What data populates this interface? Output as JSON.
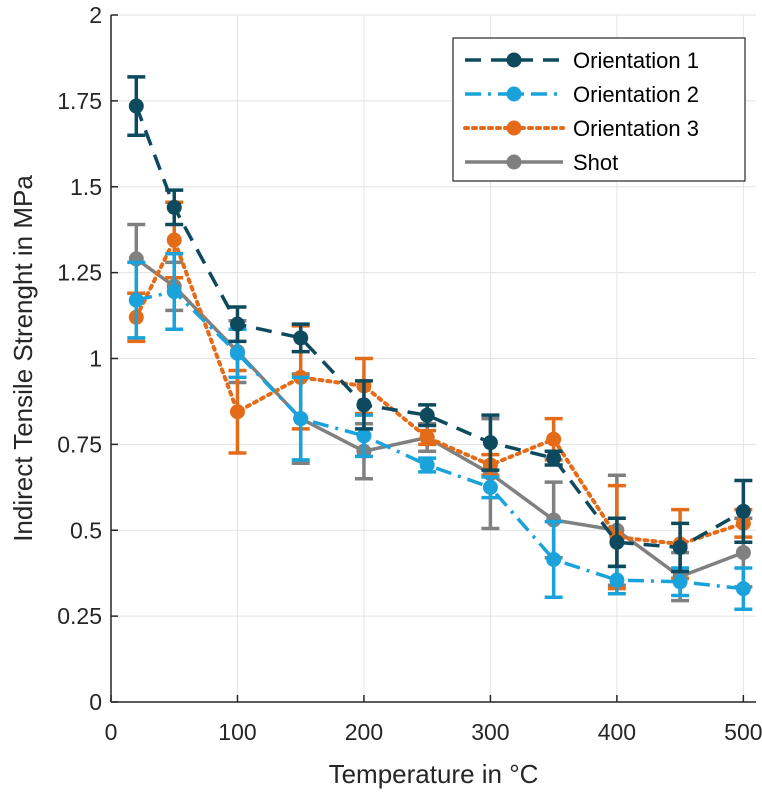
{
  "chart_data": {
    "type": "line",
    "title": "",
    "xlabel": "Temperature in °C",
    "ylabel": "Indirect Tensile Strenght in MPa",
    "xlim": [
      0,
      510
    ],
    "ylim": [
      0,
      2
    ],
    "x_ticks": [
      0,
      100,
      200,
      300,
      400,
      500
    ],
    "x_tick_labels": [
      "0",
      "100",
      "200",
      "300",
      "400",
      "500"
    ],
    "y_ticks": [
      0,
      0.25,
      0.5,
      0.75,
      1,
      1.25,
      1.5,
      1.75,
      2
    ],
    "y_tick_labels": [
      "0",
      "0.25",
      "0.5",
      "0.75",
      "1",
      "1.25",
      "1.5",
      "1.75",
      "2"
    ],
    "grid": true,
    "legend_position": "top-right",
    "x": [
      20,
      50,
      100,
      150,
      200,
      250,
      300,
      350,
      400,
      450,
      500
    ],
    "series": [
      {
        "name": "Orientation 1",
        "color": "#0d4a5e",
        "line_style": "dashed",
        "values": [
          1.735,
          1.44,
          1.1,
          1.06,
          0.865,
          0.835,
          0.755,
          0.71,
          0.465,
          0.45,
          0.555
        ],
        "errors": [
          0.085,
          0.05,
          0.05,
          0.04,
          0.07,
          0.03,
          0.08,
          0.02,
          0.07,
          0.07,
          0.09
        ]
      },
      {
        "name": "Orientation 2",
        "color": "#1aa3db",
        "line_style": "dashdot",
        "values": [
          1.17,
          1.195,
          1.015,
          0.825,
          0.775,
          0.69,
          0.625,
          0.415,
          0.355,
          0.35,
          0.33
        ],
        "errors": [
          0.11,
          0.11,
          0.07,
          0.12,
          0.06,
          0.02,
          0.03,
          0.11,
          0.04,
          0.04,
          0.06
        ]
      },
      {
        "name": "Orientation 3",
        "color": "#e46c19",
        "line_style": "dotted",
        "values": [
          1.12,
          1.345,
          0.845,
          0.945,
          0.92,
          0.77,
          0.69,
          0.765,
          0.48,
          0.46,
          0.52
        ],
        "errors": [
          0.07,
          0.11,
          0.12,
          0.15,
          0.08,
          0.02,
          0.03,
          0.06,
          0.15,
          0.1,
          0.04
        ]
      },
      {
        "name": "Shot",
        "color": "#808080",
        "line_style": "solid",
        "values": [
          1.29,
          1.21,
          1.02,
          0.825,
          0.73,
          0.77,
          0.665,
          0.53,
          0.5,
          0.365,
          0.435
        ],
        "errors": [
          0.1,
          0.07,
          0.09,
          0.13,
          0.08,
          0.04,
          0.16,
          0.11,
          0.16,
          0.07,
          0.1
        ]
      }
    ]
  }
}
